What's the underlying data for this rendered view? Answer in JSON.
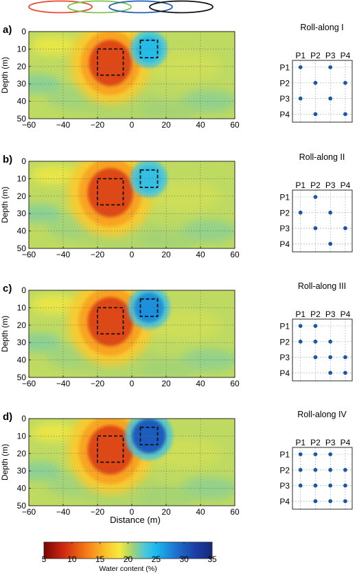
{
  "header_loops": {
    "colors": [
      "#e8492e",
      "#7cc24f",
      "#1f5fb5",
      "#111111"
    ]
  },
  "chart_data": {
    "type": "heatmap",
    "x_range": [
      -60,
      60
    ],
    "y_range": [
      0,
      50
    ],
    "x_ticks": [
      -60,
      -40,
      -20,
      0,
      20,
      40,
      60
    ],
    "y_ticks": [
      0,
      10,
      20,
      30,
      40,
      50
    ],
    "x_tick_labels": [
      "−60",
      "−40",
      "−20",
      "0",
      "20",
      "40",
      "60"
    ],
    "y_tick_labels": [
      "0",
      "10",
      "20",
      "30",
      "40",
      "50"
    ],
    "ylabel": "Depth (m)",
    "xlabel": "Distance (m)",
    "grid": true,
    "y_inverted": true,
    "anomaly_boxes": [
      {
        "x": [
          -20,
          -5
        ],
        "y": [
          10,
          25
        ],
        "kind": "dry"
      },
      {
        "x": [
          5,
          15
        ],
        "y": [
          5,
          15
        ],
        "kind": "wet"
      }
    ],
    "panels": [
      {
        "label": "a)",
        "dry_block": {
          "center": [
            -12.5,
            18
          ],
          "water_content": 10,
          "extent": [
            7.5,
            8
          ]
        },
        "wet_block": {
          "center": [
            10,
            10
          ],
          "water_content": 24.5,
          "extent": [
            3.5,
            3.5
          ]
        },
        "roll_along": {
          "title": "Roll-along I",
          "columns": [
            "P1",
            "P2",
            "P3",
            "P4"
          ],
          "rows": [
            "P1",
            "P2",
            "P3",
            "P4"
          ],
          "pairs": [
            [
              0,
              0
            ],
            [
              0,
              2
            ],
            [
              1,
              1
            ],
            [
              1,
              3
            ],
            [
              2,
              0
            ],
            [
              2,
              2
            ],
            [
              3,
              1
            ],
            [
              3,
              3
            ]
          ]
        }
      },
      {
        "label": "b)",
        "dry_block": {
          "center": [
            -12.5,
            18
          ],
          "water_content": 10,
          "extent": [
            8,
            8.5
          ]
        },
        "wet_block": {
          "center": [
            10,
            10
          ],
          "water_content": 24,
          "extent": [
            3.5,
            3.5
          ]
        },
        "roll_along": {
          "title": "Roll-along II",
          "columns": [
            "P1",
            "P2",
            "P3",
            "P4"
          ],
          "rows": [
            "P1",
            "P2",
            "P3",
            "P4"
          ],
          "pairs": [
            [
              0,
              1
            ],
            [
              1,
              0
            ],
            [
              1,
              2
            ],
            [
              2,
              1
            ],
            [
              2,
              3
            ],
            [
              3,
              2
            ]
          ]
        }
      },
      {
        "label": "c)",
        "dry_block": {
          "center": [
            -12.5,
            18
          ],
          "water_content": 10,
          "extent": [
            8,
            8.5
          ]
        },
        "wet_block": {
          "center": [
            10,
            10
          ],
          "water_content": 27,
          "extent": [
            4,
            4
          ]
        },
        "roll_along": {
          "title": "Roll-along III",
          "columns": [
            "P1",
            "P2",
            "P3",
            "P4"
          ],
          "rows": [
            "P1",
            "P2",
            "P3",
            "P4"
          ],
          "pairs": [
            [
              0,
              0
            ],
            [
              0,
              1
            ],
            [
              1,
              0
            ],
            [
              1,
              1
            ],
            [
              1,
              2
            ],
            [
              2,
              1
            ],
            [
              2,
              2
            ],
            [
              2,
              3
            ],
            [
              3,
              2
            ],
            [
              3,
              3
            ]
          ]
        }
      },
      {
        "label": "d)",
        "dry_block": {
          "center": [
            -12.5,
            18
          ],
          "water_content": 10,
          "extent": [
            8,
            8.5
          ]
        },
        "wet_block": {
          "center": [
            10,
            10
          ],
          "water_content": 30,
          "extent": [
            4.5,
            4.5
          ]
        },
        "roll_along": {
          "title": "Roll-along IV",
          "columns": [
            "P1",
            "P2",
            "P3",
            "P4"
          ],
          "rows": [
            "P1",
            "P2",
            "P3",
            "P4"
          ],
          "pairs": [
            [
              0,
              0
            ],
            [
              0,
              1
            ],
            [
              0,
              2
            ],
            [
              1,
              0
            ],
            [
              1,
              1
            ],
            [
              1,
              2
            ],
            [
              1,
              3
            ],
            [
              2,
              0
            ],
            [
              2,
              1
            ],
            [
              2,
              2
            ],
            [
              2,
              3
            ],
            [
              3,
              1
            ],
            [
              3,
              2
            ],
            [
              3,
              3
            ]
          ]
        }
      }
    ],
    "background_water_content": 20,
    "colorbar": {
      "label": "Water content (%)",
      "range": [
        5,
        35
      ],
      "ticks": [
        5,
        10,
        15,
        20,
        25,
        30,
        35
      ],
      "tick_labels": [
        "5",
        "10",
        "15",
        "20",
        "25",
        "30",
        "35"
      ],
      "colormap": "jet_reversed"
    }
  }
}
